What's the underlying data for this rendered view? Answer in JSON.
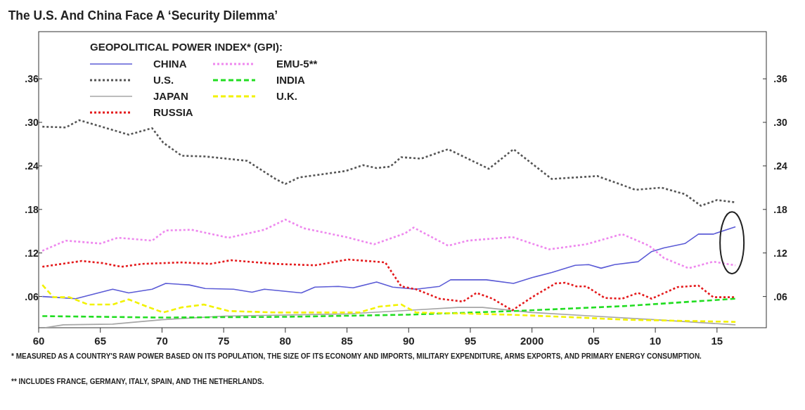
{
  "chart_data": {
    "type": "line",
    "title": "The U.S. And China Face A ‘Security Dilemma’",
    "legend_title": "GEOPOLITICAL POWER INDEX* (GPI):",
    "legend": "top left",
    "xlim": [
      1960,
      2019
    ],
    "xticks": [
      {
        "value": 1960,
        "label": "60"
      },
      {
        "value": 1965,
        "label": "65"
      },
      {
        "value": 1970,
        "label": "70"
      },
      {
        "value": 1975,
        "label": "75"
      },
      {
        "value": 1980,
        "label": "80"
      },
      {
        "value": 1985,
        "label": "85"
      },
      {
        "value": 1990,
        "label": "90"
      },
      {
        "value": 1995,
        "label": "95"
      },
      2000,
      {
        "value": 2005,
        "label": "05"
      },
      {
        "value": 2010,
        "label": "10"
      },
      {
        "value": 2015,
        "label": "15"
      }
    ],
    "ylim": [
      0.017,
      0.425
    ],
    "yticks": [
      {
        "value": 0.06,
        "label": ".06"
      },
      {
        "value": 0.12,
        "label": ".12"
      },
      {
        "value": 0.18,
        "label": ".18"
      },
      {
        "value": 0.24,
        "label": ".24"
      },
      {
        "value": 0.3,
        "label": ".30"
      },
      {
        "value": 0.36,
        "label": ".36"
      }
    ],
    "y2lim": [
      0.017,
      0.425
    ],
    "y2ticks": [
      {
        "value": 0.06,
        "label": ".06"
      },
      {
        "value": 0.12,
        "label": ".12"
      },
      {
        "value": 0.18,
        "label": ".18"
      },
      {
        "value": 0.24,
        "label": ".24"
      },
      {
        "value": 0.3,
        "label": ".30"
      },
      {
        "value": 0.36,
        "label": ".36"
      }
    ],
    "grid": false,
    "series": [
      {
        "name": "CHINA",
        "color": "#5b5bd6",
        "line_style": "solid",
        "x": [
          1960.3,
          1961.2,
          1963,
          1966,
          1967.3,
          1969.2,
          1970.3,
          1972.2,
          1973.5,
          1975.8,
          1977.3,
          1978.3,
          1981.3,
          1982.4,
          1984.3,
          1985.5,
          1987.4,
          1988.7,
          1990.6,
          1992.5,
          1993.4,
          1996.3,
          1998.5,
          2000,
          2001.6,
          2003.5,
          2004.6,
          2005.6,
          2006.7,
          2008.6,
          2009.7,
          2010.7,
          2012.4,
          2013.5,
          2014.7,
          2016.5
        ],
        "values": [
          0.06,
          0.059,
          0.057,
          0.07,
          0.065,
          0.07,
          0.078,
          0.076,
          0.071,
          0.07,
          0.066,
          0.07,
          0.065,
          0.073,
          0.074,
          0.072,
          0.08,
          0.073,
          0.07,
          0.074,
          0.083,
          0.083,
          0.078,
          0.086,
          0.093,
          0.103,
          0.104,
          0.099,
          0.104,
          0.108,
          0.122,
          0.127,
          0.133,
          0.146,
          0.146,
          0.156
        ]
      },
      {
        "name": "U.S.",
        "color": "#555555",
        "line_style": "dotted",
        "x": [
          1960.3,
          1962.2,
          1963.3,
          1967.3,
          1969.2,
          1970.1,
          1971.6,
          1973.5,
          1976.9,
          1979.2,
          1980,
          1981.1,
          1984.9,
          1986.3,
          1987.4,
          1988.5,
          1989.4,
          1991,
          1993.2,
          1996.5,
          1998.5,
          2001.6,
          2005.3,
          2008.4,
          2010.5,
          2012.4,
          2013.7,
          2015,
          2016.4
        ],
        "values": [
          0.294,
          0.293,
          0.303,
          0.283,
          0.292,
          0.272,
          0.254,
          0.253,
          0.247,
          0.222,
          0.215,
          0.224,
          0.233,
          0.241,
          0.237,
          0.239,
          0.252,
          0.25,
          0.263,
          0.236,
          0.263,
          0.222,
          0.226,
          0.207,
          0.21,
          0.201,
          0.185,
          0.193,
          0.19
        ]
      },
      {
        "name": "JAPAN",
        "color": "#a6a6a6",
        "line_style": "solid",
        "x": [
          1960.5,
          1962,
          1966,
          1970,
          1975,
          1985,
          1990,
          1994,
          1996,
          2000,
          2005,
          2010,
          2016.5
        ],
        "values": [
          0.017,
          0.021,
          0.022,
          0.028,
          0.033,
          0.036,
          0.041,
          0.045,
          0.045,
          0.038,
          0.033,
          0.028,
          0.021
        ]
      },
      {
        "name": "RUSSIA",
        "color": "#e41a1c",
        "line_style": "dotted",
        "x": [
          1960.3,
          1963.5,
          1965.2,
          1966.7,
          1968.4,
          1971.6,
          1973.9,
          1975.6,
          1979.2,
          1982.4,
          1985.1,
          1988.1,
          1989.4,
          1990.6,
          1992.5,
          1994.4,
          1995.5,
          1996.8,
          1998.4,
          2000,
          2001.9,
          2002.7,
          2003.6,
          2004.4,
          2005.9,
          2007.3,
          2008.6,
          2009.7,
          2011.8,
          2013.5,
          2014.7,
          2016.5
        ],
        "values": [
          0.101,
          0.109,
          0.106,
          0.101,
          0.105,
          0.107,
          0.105,
          0.11,
          0.105,
          0.103,
          0.111,
          0.107,
          0.074,
          0.07,
          0.057,
          0.053,
          0.065,
          0.057,
          0.041,
          0.059,
          0.078,
          0.079,
          0.074,
          0.074,
          0.058,
          0.057,
          0.065,
          0.057,
          0.073,
          0.075,
          0.059,
          0.059
        ]
      },
      {
        "name": "EMU-5**",
        "color": "#ee88ee",
        "line_style": "dotted",
        "x": [
          1960.3,
          1962.2,
          1965,
          1966.4,
          1969.2,
          1970.3,
          1972.4,
          1975.4,
          1978.3,
          1980,
          1981.5,
          1984.9,
          1987.2,
          1989.7,
          1990.4,
          1993.2,
          1994.8,
          1998.4,
          2001.4,
          2004.4,
          2007.3,
          2009.5,
          2010.7,
          2012.7,
          2014.7,
          2016.5
        ],
        "values": [
          0.123,
          0.137,
          0.133,
          0.141,
          0.137,
          0.151,
          0.152,
          0.141,
          0.152,
          0.166,
          0.154,
          0.142,
          0.132,
          0.147,
          0.155,
          0.13,
          0.137,
          0.142,
          0.125,
          0.132,
          0.146,
          0.13,
          0.113,
          0.099,
          0.108,
          0.103
        ]
      },
      {
        "name": "INDIA",
        "color": "#22dd22",
        "line_style": "dashed",
        "x": [
          1960.3,
          1970,
          1980,
          1990,
          1998.6,
          2007.7,
          2016.5
        ],
        "values": [
          0.033,
          0.031,
          0.032,
          0.035,
          0.04,
          0.047,
          0.057
        ]
      },
      {
        "name": "U.K.",
        "color": "#f2f200",
        "line_style": "dashed",
        "x": [
          1960.3,
          1961.2,
          1962.5,
          1964,
          1966,
          1967.3,
          1968.8,
          1970.1,
          1971.6,
          1973.4,
          1975.4,
          1979.2,
          1986,
          1987.6,
          1989.4,
          1990.6,
          1998.2,
          2003.9,
          2007.7,
          2016.5
        ],
        "values": [
          0.076,
          0.059,
          0.059,
          0.049,
          0.049,
          0.056,
          0.046,
          0.038,
          0.045,
          0.049,
          0.04,
          0.038,
          0.038,
          0.046,
          0.049,
          0.038,
          0.035,
          0.031,
          0.028,
          0.025
        ]
      }
    ],
    "annotations": [
      "*  MEASURED AS A COUNTRY'S RAW POWER BASED ON ITS POPULATION, THE SIZE OF ITS ECONOMY AND IMPORTS, MILITARY EXPENDITURE, ARMS EXPORTS, AND PRIMARY ENERGY CONSUMPTION.",
      "** INCLUDES FRANCE, GERMANY, ITALY, SPAIN, AND THE NETHERLANDS."
    ]
  }
}
